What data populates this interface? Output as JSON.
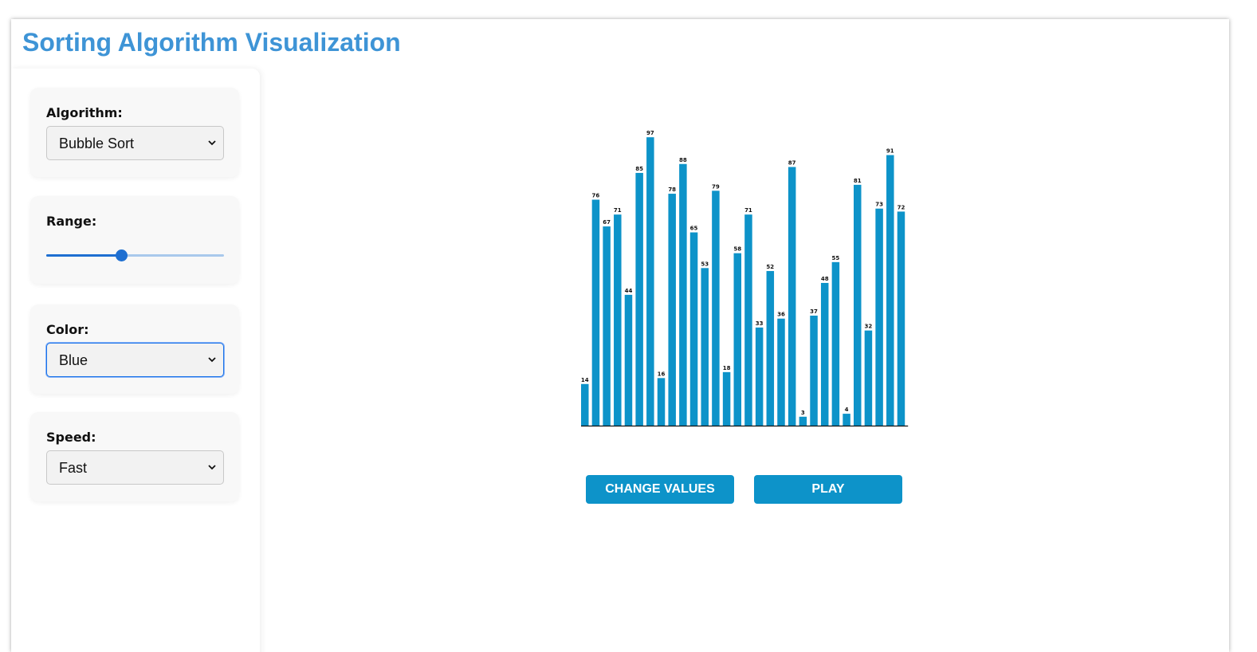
{
  "page": {
    "title": "Sorting Algorithm Visualization"
  },
  "controls": {
    "algorithm": {
      "label": "Algorithm:",
      "value": "Bubble Sort"
    },
    "range": {
      "label": "Range:",
      "value_fraction": 0.42
    },
    "color": {
      "label": "Color:",
      "value": "Blue"
    },
    "speed": {
      "label": "Speed:",
      "value": "Fast"
    }
  },
  "actions": {
    "change_values": "CHANGE VALUES",
    "play": "PLAY"
  },
  "theme": {
    "title_color": "#3e94d6",
    "bar_color": "#0d93c9",
    "button_color": "#0d93c9",
    "slider_color": "#1e6fd1"
  },
  "chart_data": {
    "type": "bar",
    "values": [
      14,
      76,
      67,
      71,
      44,
      85,
      97,
      16,
      78,
      88,
      65,
      53,
      79,
      18,
      58,
      71,
      33,
      52,
      36,
      87,
      3,
      37,
      48,
      55,
      4,
      81,
      32,
      73,
      91,
      72
    ],
    "ylim": [
      0,
      100
    ],
    "grid": false,
    "data_labels": true
  }
}
